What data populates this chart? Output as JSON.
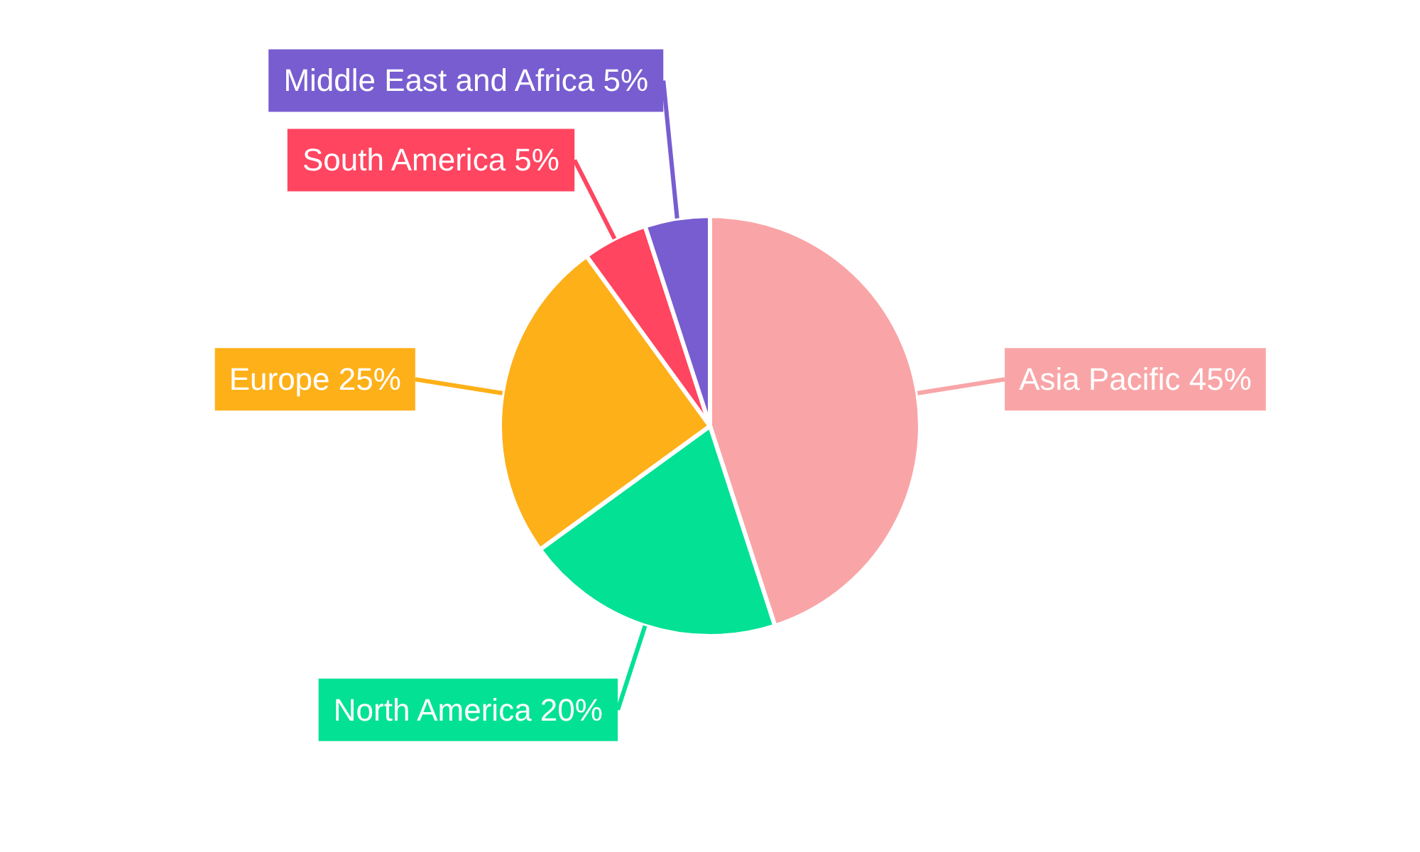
{
  "chart_data": {
    "type": "pie",
    "categories": [
      "Asia Pacific",
      "North America",
      "Europe",
      "South America",
      "Middle East and Africa"
    ],
    "values": [
      45,
      20,
      25,
      5,
      5
    ],
    "colors": [
      "#f9a5a7",
      "#03e195",
      "#feb019",
      "#ff4560",
      "#775dd0"
    ],
    "value_labels": [
      "45%",
      "20%",
      "25%",
      "5%",
      "5%"
    ]
  }
}
